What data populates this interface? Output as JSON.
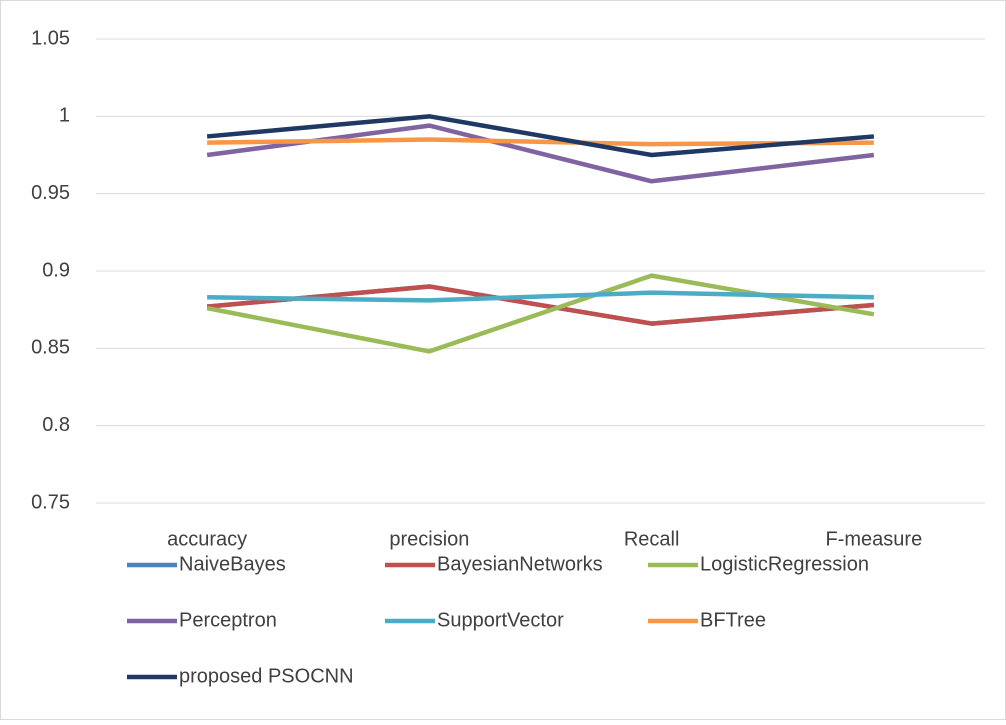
{
  "chart_data": {
    "type": "line",
    "categories": [
      "accuracy",
      "precision",
      "Recall",
      "F-measure"
    ],
    "series": [
      {
        "name": "NaiveBayes",
        "color": "#4f81bd",
        "values": [
          0.877,
          0.89,
          0.866,
          0.878
        ]
      },
      {
        "name": "BayesianNetworks",
        "color": "#c0504d",
        "values": [
          0.877,
          0.89,
          0.866,
          0.878
        ]
      },
      {
        "name": "LogisticRegression",
        "color": "#9bbb59",
        "values": [
          0.876,
          0.848,
          0.897,
          0.872
        ]
      },
      {
        "name": "Perceptron",
        "color": "#8064a2",
        "values": [
          0.975,
          0.994,
          0.958,
          0.975
        ]
      },
      {
        "name": "SupportVector",
        "color": "#4bacc6",
        "values": [
          0.883,
          0.881,
          0.886,
          0.883
        ]
      },
      {
        "name": "BFTree",
        "color": "#f79646",
        "values": [
          0.983,
          0.985,
          0.982,
          0.983
        ]
      },
      {
        "name": "proposed PSOCNN",
        "color": "#1f3864",
        "values": [
          0.987,
          1,
          0.975,
          0.987
        ]
      }
    ],
    "ylim": [
      0.75,
      1.05
    ],
    "yticks": [
      0.75,
      0.8,
      0.85,
      0.9,
      0.95,
      1,
      1.05
    ],
    "grid": true,
    "legend": "bottom"
  }
}
